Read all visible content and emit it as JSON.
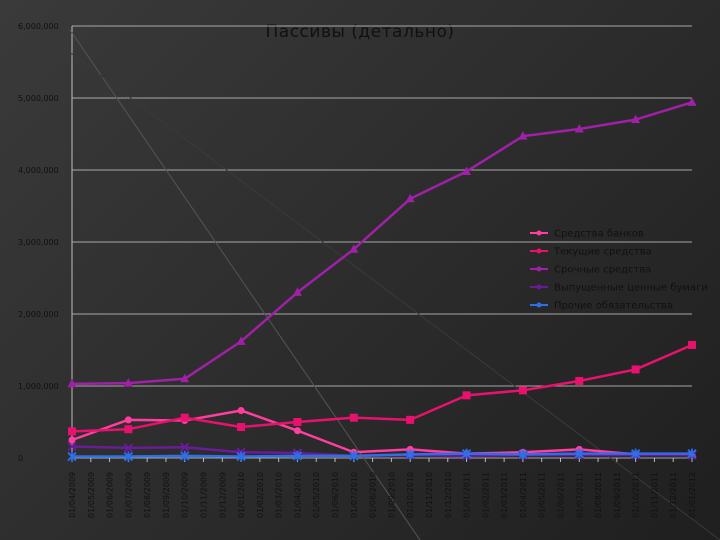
{
  "chart_data": {
    "type": "line",
    "title": "Пассивы (детально)",
    "xlabel": "",
    "ylabel": "",
    "ylim": [
      0,
      6000000
    ],
    "yticks": [
      0,
      1000000,
      2000000,
      3000000,
      4000000,
      5000000,
      6000000
    ],
    "ytick_labels": [
      "0",
      "1,000,000",
      "2,000,000",
      "3,000,000",
      "4,000,000",
      "5,000,000",
      "6,000,000"
    ],
    "grid": true,
    "legend_position": "right",
    "categories": [
      "01/04/2009",
      "01/05/2009",
      "01/06/2009",
      "01/07/2009",
      "01/08/2009",
      "01/09/2009",
      "01/10/2009",
      "01/11/2009",
      "01/12/2009",
      "01/01/2010",
      "01/02/2010",
      "01/03/2010",
      "01/04/2010",
      "01/05/2010",
      "01/06/2010",
      "01/07/2010",
      "01/08/2010",
      "01/09/2010",
      "01/10/2010",
      "01/11/2010",
      "01/12/2010",
      "01/01/2011",
      "01/02/2011",
      "01/03/2011",
      "01/04/2011",
      "01/05/2011",
      "01/06/2011",
      "01/07/2011",
      "01/08/2011",
      "01/09/2011",
      "01/10/2011",
      "01/11/2011",
      "01/12/2011",
      "01/01/2012"
    ],
    "series": [
      {
        "name": "Средства банков",
        "color": "#ff3ea0",
        "marker": "circle",
        "x": [
          "01/04/2009",
          "01/07/2009",
          "01/10/2009",
          "01/01/2010",
          "01/04/2010",
          "01/07/2010",
          "01/10/2010",
          "01/01/2011",
          "01/04/2011",
          "01/07/2011",
          "01/10/2011",
          "01/01/2012"
        ],
        "values": [
          250000,
          530000,
          520000,
          660000,
          380000,
          80000,
          120000,
          60000,
          80000,
          120000,
          50000,
          40000
        ]
      },
      {
        "name": "Текущие средства",
        "color": "#e8126e",
        "marker": "square",
        "x": [
          "01/04/2009",
          "01/07/2009",
          "01/10/2009",
          "01/01/2010",
          "01/04/2010",
          "01/07/2010",
          "01/10/2010",
          "01/01/2011",
          "01/04/2011",
          "01/07/2011",
          "01/10/2011",
          "01/01/2012"
        ],
        "values": [
          370000,
          400000,
          560000,
          430000,
          500000,
          560000,
          530000,
          870000,
          940000,
          1070000,
          1230000,
          1570000
        ]
      },
      {
        "name": "Срочные средства",
        "color": "#a020a8",
        "marker": "triangle",
        "x": [
          "01/04/2009",
          "01/07/2009",
          "01/10/2009",
          "01/01/2010",
          "01/04/2010",
          "01/07/2010",
          "01/10/2010",
          "01/01/2011",
          "01/04/2011",
          "01/07/2011",
          "01/10/2011",
          "01/01/2012"
        ],
        "values": [
          1030000,
          1040000,
          1100000,
          1620000,
          2300000,
          2900000,
          3600000,
          3980000,
          4470000,
          4570000,
          4700000,
          4940000
        ]
      },
      {
        "name": "Выпущенные ценные бумаги",
        "color": "#6a1b9a",
        "marker": "x",
        "x": [
          "01/04/2009",
          "01/07/2009",
          "01/10/2009",
          "01/01/2010",
          "01/04/2010",
          "01/07/2010",
          "01/10/2010",
          "01/01/2011",
          "01/04/2011",
          "01/07/2011",
          "01/10/2011",
          "01/01/2012"
        ],
        "values": [
          160000,
          140000,
          150000,
          80000,
          70000,
          30000,
          40000,
          30000,
          40000,
          40000,
          40000,
          40000
        ]
      },
      {
        "name": "Прочие обязательства",
        "color": "#2e6fe8",
        "marker": "star",
        "x": [
          "01/04/2009",
          "01/07/2009",
          "01/10/2009",
          "01/01/2010",
          "01/04/2010",
          "01/07/2010",
          "01/10/2010",
          "01/01/2011",
          "01/04/2011",
          "01/07/2011",
          "01/10/2011",
          "01/01/2012"
        ],
        "values": [
          20000,
          20000,
          30000,
          20000,
          30000,
          30000,
          50000,
          60000,
          50000,
          60000,
          60000,
          60000
        ]
      }
    ]
  }
}
